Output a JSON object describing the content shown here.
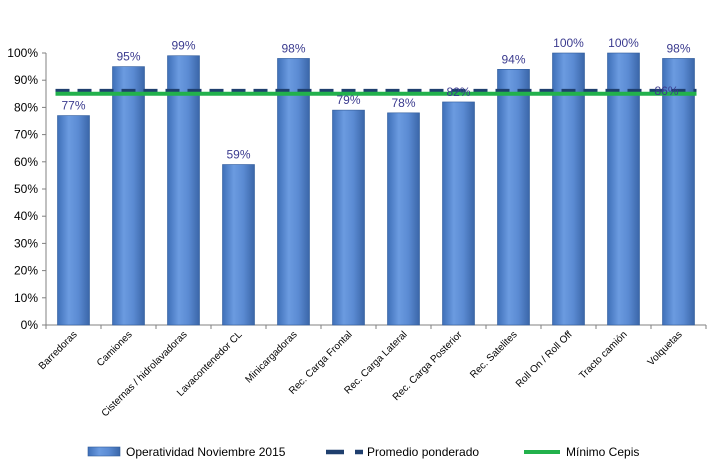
{
  "chart_data": {
    "type": "bar",
    "categories": [
      "Barredoras",
      "Camiones",
      "Cisternas / hidrolavadoras",
      "Lavacontenedor CL",
      "Minicargadoras",
      "Rec. Carga Frontal",
      "Rec. Carga Lateral",
      "Rec. Carga Posterior",
      "Rec. Satelites",
      "Roll On / Roll Off",
      "Tracto camión",
      "Volquetas"
    ],
    "series": [
      {
        "name": "Operatividad Noviembre 2015",
        "kind": "bar",
        "values": [
          77,
          95,
          99,
          59,
          98,
          79,
          78,
          82,
          94,
          100,
          100,
          98
        ],
        "data_labels": [
          "77%",
          "95%",
          "99%",
          "59%",
          "98%",
          "79%",
          "78%",
          "82%",
          "94%",
          "100%",
          "100%",
          "98%"
        ],
        "color": "#5b8fd6"
      },
      {
        "name": "Promedio ponderado",
        "kind": "line-dashed",
        "values": [
          86,
          86,
          86,
          86,
          86,
          86,
          86,
          86,
          86,
          86,
          86,
          86
        ],
        "end_label": "86%",
        "color": "#1f3f6e"
      },
      {
        "name": "Mínimo Cepis",
        "kind": "line",
        "values": [
          85,
          85,
          85,
          85,
          85,
          85,
          85,
          85,
          85,
          85,
          85,
          85
        ],
        "color": "#22b14c"
      }
    ],
    "y_ticks": [
      "0%",
      "10%",
      "20%",
      "30%",
      "40%",
      "50%",
      "60%",
      "70%",
      "80%",
      "90%",
      "100%"
    ],
    "ylim": [
      0,
      100
    ],
    "grid": false,
    "legend_position": "bottom",
    "title": "",
    "xlabel": "",
    "ylabel": ""
  }
}
